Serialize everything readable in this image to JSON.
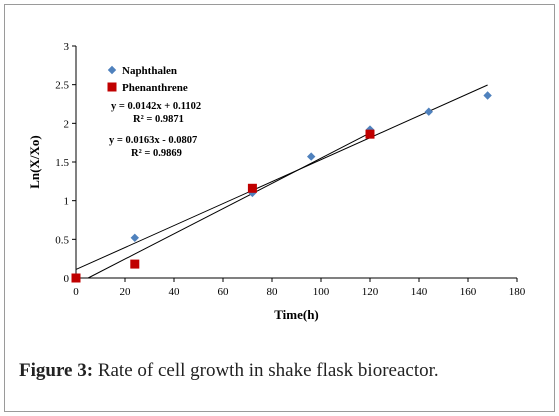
{
  "chart_data": {
    "type": "scatter",
    "xlabel": "Time(h)",
    "ylabel": "Ln(X/Xo)",
    "xlim": [
      0,
      180
    ],
    "ylim": [
      0,
      3
    ],
    "xticks": [
      0,
      20,
      40,
      60,
      80,
      100,
      120,
      140,
      160,
      180
    ],
    "yticks": [
      0,
      0.5,
      1,
      1.5,
      2,
      2.5,
      3
    ],
    "ytick_labels": [
      "0",
      "0.5",
      "1",
      "1.5",
      "2",
      "2.5",
      "3"
    ],
    "grid": false,
    "legend_position": "top-left",
    "series": [
      {
        "name": "Naphthalen",
        "marker": "diamond",
        "color": "#4f81bd",
        "x": [
          0,
          24,
          72,
          96,
          120,
          144,
          168
        ],
        "y": [
          0,
          0.52,
          1.1,
          1.57,
          1.92,
          2.15,
          2.36
        ],
        "trendline": {
          "slope": 0.0142,
          "intercept": 0.1102,
          "x_range": [
            0,
            168
          ],
          "equation": "y = 0.0142x + 0.1102",
          "r2": "R² = 0.9871"
        }
      },
      {
        "name": "Phenanthrene",
        "marker": "square",
        "color": "#c00000",
        "x": [
          0,
          24,
          72,
          120
        ],
        "y": [
          0,
          0.18,
          1.16,
          1.86
        ],
        "trendline": {
          "slope": 0.0163,
          "intercept": -0.0807,
          "x_range": [
            0,
            120
          ],
          "equation": "y = 0.0163x - 0.0807",
          "r2": "R² = 0.9869"
        }
      }
    ]
  },
  "caption": {
    "label": "Figure 3:",
    "text": " Rate of cell growth in shake flask bioreactor."
  }
}
